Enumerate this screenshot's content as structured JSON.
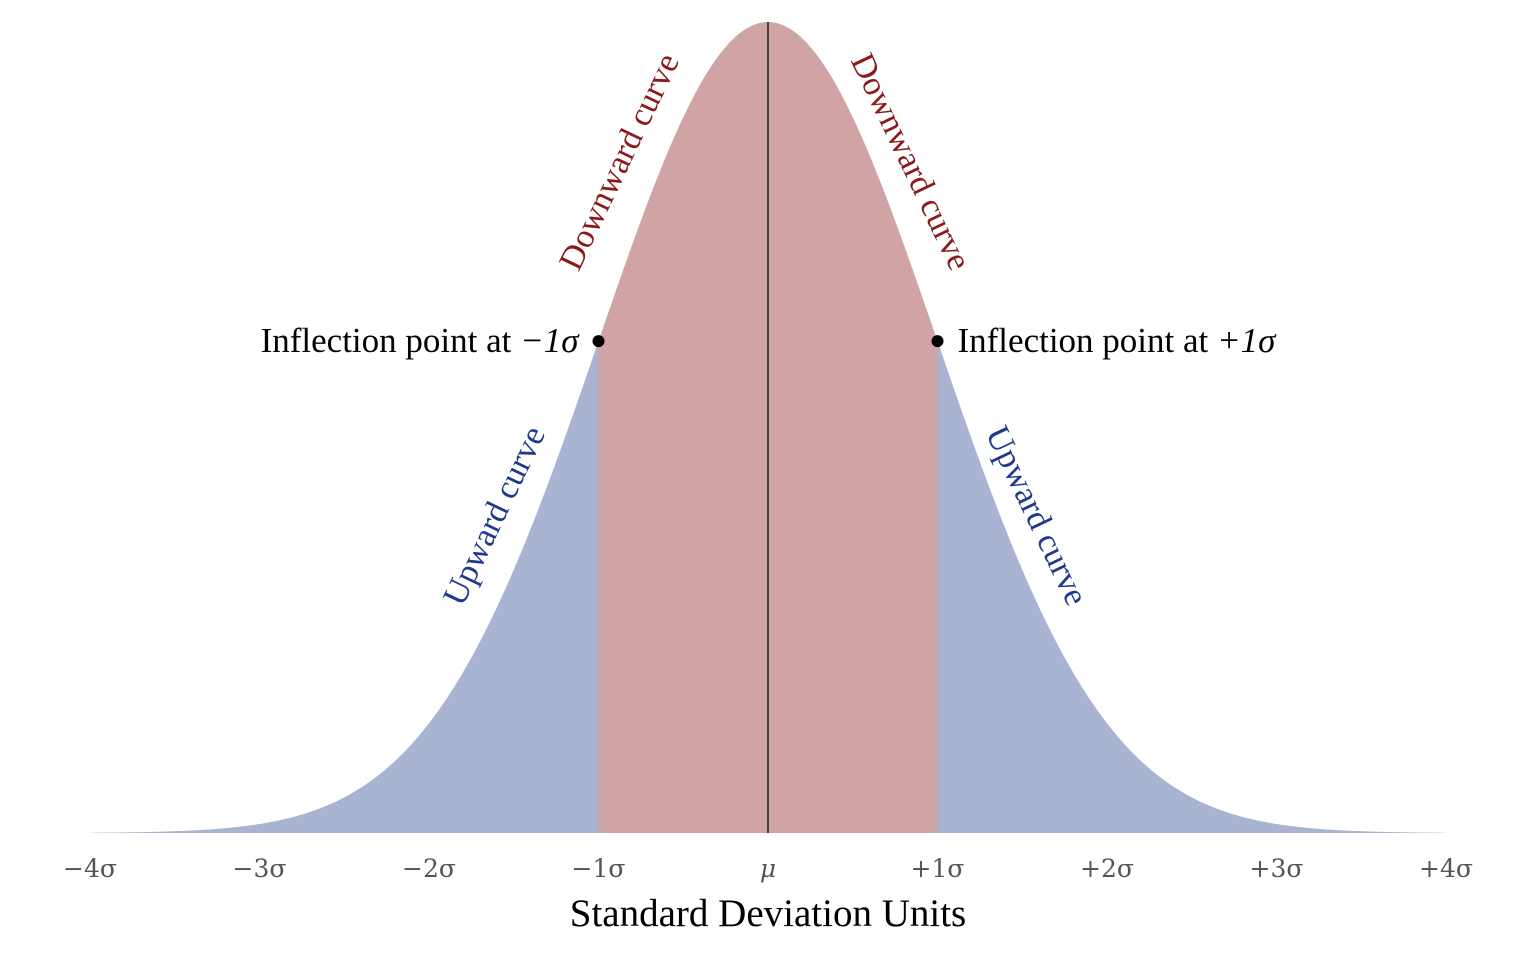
{
  "colors": {
    "downward_fill": "#d0a3a4",
    "upward_fill": "#a9b3d2",
    "downward_text": "#8b1a1a",
    "upward_text": "#1f3a8a",
    "mean_line": "#444444",
    "point": "#000000"
  },
  "chart_data": {
    "type": "area",
    "title": "",
    "xlabel": "Standard Deviation Units",
    "ylabel": "",
    "xlim": [
      -4,
      4
    ],
    "ylim": [
      0,
      0.4
    ],
    "grid": false,
    "distribution": "standard normal",
    "x_ticks": [
      -4,
      -3,
      -2,
      -1,
      0,
      1,
      2,
      3,
      4
    ],
    "x_tick_labels": [
      "−4σ",
      "−3σ",
      "−2σ",
      "−1σ",
      "μ",
      "+1σ",
      "+2σ",
      "+3σ",
      "+4σ"
    ],
    "regions": [
      {
        "name": "Upward curve",
        "from": -4,
        "to": -1,
        "color": "upward_fill"
      },
      {
        "name": "Downward curve",
        "from": -1,
        "to": 1,
        "color": "downward_fill"
      },
      {
        "name": "Upward curve",
        "from": 1,
        "to": 4,
        "color": "upward_fill"
      }
    ],
    "mean_line_x": 0,
    "inflection_points": [
      {
        "x": -1,
        "label_prefix": "Inflection point at ",
        "label_value": "−1σ"
      },
      {
        "x": 1,
        "label_prefix": "Inflection point at ",
        "label_value": "+1σ"
      }
    ],
    "curve_annotations": [
      {
        "text": "Downward curve",
        "side": "left",
        "color": "downward_text"
      },
      {
        "text": "Downward curve",
        "side": "right",
        "color": "downward_text"
      },
      {
        "text": "Upward curve",
        "side": "left",
        "color": "upward_text"
      },
      {
        "text": "Upward curve",
        "side": "right",
        "color": "upward_text"
      }
    ]
  }
}
